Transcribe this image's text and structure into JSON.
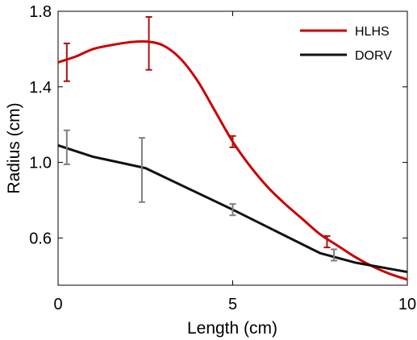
{
  "chart_data": {
    "type": "line",
    "xlabel": "Length (cm)",
    "ylabel": "Radius (cm)",
    "xlim": [
      0,
      10
    ],
    "ylim": [
      0.35,
      1.8
    ],
    "x_ticks": [
      0,
      5,
      10
    ],
    "x_tick_labels": [
      "0",
      "5",
      "10"
    ],
    "y_ticks": [
      0.6,
      1.0,
      1.4,
      1.8
    ],
    "y_tick_labels": [
      "0.6",
      "1.0",
      "1.4",
      "1.8"
    ],
    "legend_position": "top-right",
    "grid": false,
    "series": [
      {
        "name": "HLHS",
        "color": "#cc0000",
        "error_bar_color": "#aa1111",
        "x": [
          0.0,
          0.5,
          1.0,
          1.5,
          2.0,
          2.5,
          3.0,
          3.5,
          4.0,
          4.5,
          5.0,
          5.5,
          6.0,
          6.5,
          7.0,
          7.5,
          8.0,
          8.5,
          9.0,
          9.5,
          10.0
        ],
        "y": [
          1.53,
          1.56,
          1.6,
          1.62,
          1.635,
          1.64,
          1.62,
          1.55,
          1.43,
          1.27,
          1.11,
          0.98,
          0.87,
          0.78,
          0.7,
          0.62,
          0.56,
          0.5,
          0.45,
          0.41,
          0.38
        ],
        "error_bars": [
          {
            "x": 0.25,
            "y": 1.53,
            "err": 0.1
          },
          {
            "x": 2.6,
            "y": 1.63,
            "err": 0.14
          },
          {
            "x": 5.0,
            "y": 1.11,
            "err": 0.03
          },
          {
            "x": 7.7,
            "y": 0.58,
            "err": 0.03
          }
        ]
      },
      {
        "name": "DORV",
        "color": "#111111",
        "error_bar_color": "#7f7f7f",
        "x": [
          0.0,
          1.0,
          2.5,
          5.0,
          7.5,
          8.5,
          10.0
        ],
        "y": [
          1.09,
          1.03,
          0.97,
          0.75,
          0.52,
          0.47,
          0.42
        ],
        "error_bars": [
          {
            "x": 0.25,
            "y": 1.08,
            "err": 0.09
          },
          {
            "x": 2.4,
            "y": 0.96,
            "err": 0.17
          },
          {
            "x": 5.0,
            "y": 0.75,
            "err": 0.03
          },
          {
            "x": 7.9,
            "y": 0.51,
            "err": 0.03
          }
        ]
      }
    ]
  }
}
